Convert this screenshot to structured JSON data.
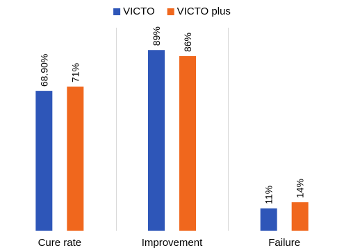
{
  "chart_data": {
    "type": "bar",
    "title": "",
    "xlabel": "",
    "ylabel": "",
    "ylim": [
      0,
      100
    ],
    "grid": false,
    "legend_position": "top-center",
    "categories": [
      "Cure rate",
      "Improvement",
      "Failure"
    ],
    "series": [
      {
        "name": "VICTO",
        "color": "#2E56B8",
        "values": [
          68.9,
          89,
          11
        ],
        "labels": [
          "68.90%",
          "89%",
          "11%"
        ]
      },
      {
        "name": "VICTO plus",
        "color": "#F0671D",
        "values": [
          71,
          86,
          14
        ],
        "labels": [
          "71%",
          "86%",
          "14%"
        ]
      }
    ]
  },
  "colors": {
    "separator": "#d9d9d9",
    "text": "#000000"
  }
}
